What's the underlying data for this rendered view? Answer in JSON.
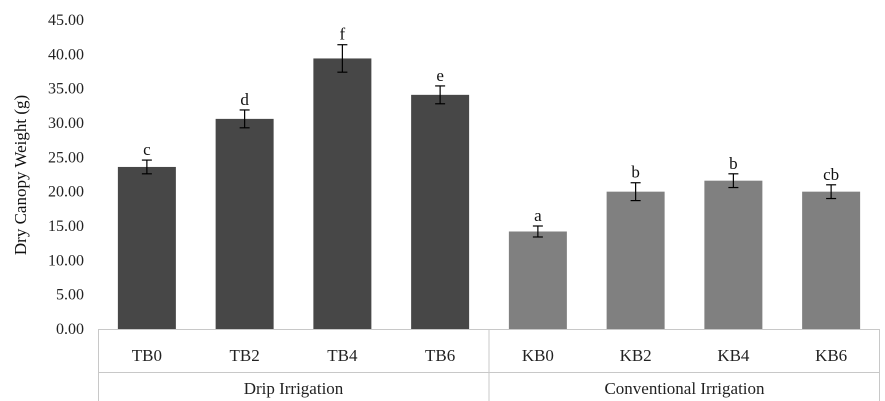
{
  "chart_data": {
    "type": "bar",
    "title": "",
    "ylabel": "Dry Canopy Weight (g)",
    "xlabel": "",
    "ylim": [
      0,
      45
    ],
    "yticks": [
      "0.00",
      "5.00",
      "10.00",
      "15.00",
      "20.00",
      "25.00",
      "30.00",
      "35.00",
      "40.00",
      "45.00"
    ],
    "grid": false,
    "groups": [
      {
        "name": "Drip Irrigation",
        "color": "#474747",
        "bars": [
          {
            "category": "TB0",
            "value": 23.6,
            "error": 1.0,
            "letter": "c"
          },
          {
            "category": "TB2",
            "value": 30.6,
            "error": 1.3,
            "letter": "d"
          },
          {
            "category": "TB4",
            "value": 39.4,
            "error": 2.0,
            "letter": "f"
          },
          {
            "category": "TB6",
            "value": 34.1,
            "error": 1.3,
            "letter": "e"
          }
        ]
      },
      {
        "name": "Conventional Irrigation",
        "color": "#808080",
        "bars": [
          {
            "category": "KB0",
            "value": 14.2,
            "error": 0.8,
            "letter": "a"
          },
          {
            "category": "KB2",
            "value": 20.0,
            "error": 1.3,
            "letter": "b"
          },
          {
            "category": "KB4",
            "value": 21.6,
            "error": 1.0,
            "letter": "b"
          },
          {
            "category": "KB6",
            "value": 20.0,
            "error": 1.0,
            "letter": "cb"
          }
        ]
      }
    ]
  }
}
